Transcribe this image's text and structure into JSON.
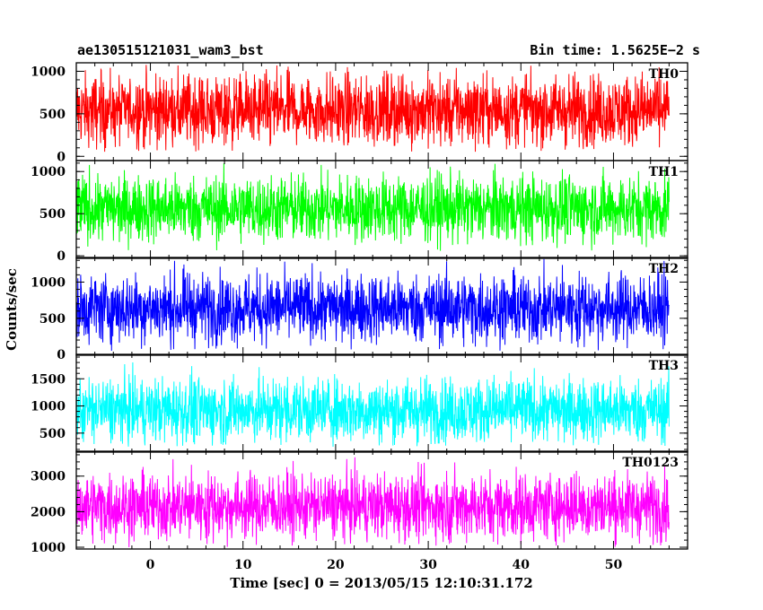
{
  "header": {
    "left_title": "ae130515121031_wam3_bst",
    "right_title": "Bin time: 1.5625E−2 s"
  },
  "chart_data": {
    "type": "line",
    "x": {
      "label": "Time [sec] 0 = 2013/05/15 12:10:31.172",
      "range": [
        -8,
        58
      ],
      "ticks": [
        0,
        10,
        20,
        30,
        40,
        50
      ],
      "tick_labels": [
        "0",
        "10",
        "20",
        "30",
        "40",
        "50"
      ],
      "data_range": [
        -8,
        56
      ],
      "bin_time": 0.015625
    },
    "y_label": "Counts/sec",
    "series": [
      {
        "name": "TH0",
        "color": "#ff0000",
        "ylim": [
          -50,
          1100
        ],
        "ticks": [
          0,
          500,
          1000
        ],
        "tick_labels": [
          "0",
          "500",
          "1000"
        ],
        "baseline": 540,
        "spread": 210,
        "min": 50,
        "max": 1100
      },
      {
        "name": "TH1",
        "color": "#00ff00",
        "ylim": [
          -30,
          1130
        ],
        "ticks": [
          0,
          500,
          1000
        ],
        "tick_labels": [
          "0",
          "500",
          "1000"
        ],
        "baseline": 560,
        "spread": 200,
        "min": 50,
        "max": 1130
      },
      {
        "name": "TH2",
        "color": "#0000ff",
        "ylim": [
          -10,
          1340
        ],
        "ticks": [
          0,
          500,
          1000
        ],
        "tick_labels": [
          "0",
          "500",
          "1000"
        ],
        "baseline": 640,
        "spread": 240,
        "min": 50,
        "max": 1340
      },
      {
        "name": "TH3",
        "color": "#00ffff",
        "ylim": [
          150,
          1950
        ],
        "ticks": [
          500,
          1000,
          1500
        ],
        "tick_labels": [
          "500",
          "1000",
          "1500"
        ],
        "baseline": 920,
        "spread": 300,
        "min": 250,
        "max": 1950
      },
      {
        "name": "TH0123",
        "color": "#ff00ff",
        "ylim": [
          950,
          3700
        ],
        "ticks": [
          1000,
          2000,
          3000
        ],
        "tick_labels": [
          "1000",
          "2000",
          "3000"
        ],
        "baseline": 2150,
        "spread": 470,
        "min": 1000,
        "max": 3700
      }
    ]
  }
}
